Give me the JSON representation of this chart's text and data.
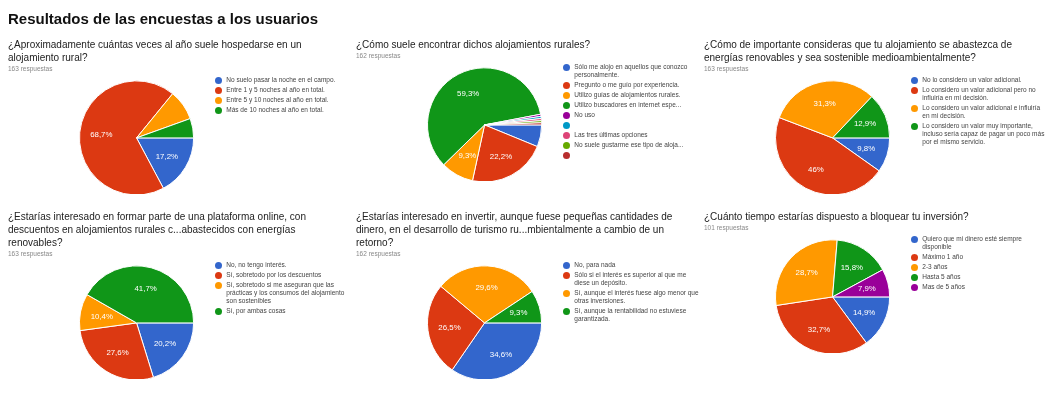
{
  "chart_data": [
    {
      "type": "pie",
      "title": "¿Aproximadamente cuántas veces al año suele hospedarse en un alojamiento rural?",
      "subtitle": "163 respuestas",
      "annotations": [
        "Resultados de las encuestas a los usuarios"
      ],
      "legend": "right",
      "categories": [
        "No suelo pasar la noche en el campo.",
        "Entre 1 y 5 noches al año en total.",
        "Entre 5 y 10 noches al año en total.",
        "Más de 10 noches al año en total."
      ],
      "values": [
        17.2,
        68.7,
        8.6,
        5.5
      ],
      "value_labels": [
        "17,2%",
        "68,7%",
        null,
        null
      ],
      "colors": [
        "#3366cc",
        "#dc3912",
        "#ff9900",
        "#109618"
      ]
    },
    {
      "type": "pie",
      "title": "¿Cómo suele encontrar dichos alojamientos rurales?",
      "subtitle": "162 respuestas",
      "legend": "right",
      "categories": [
        "Sólo me alojo en aquellos que conozco personalmente.",
        "Pregunto o me guío por experiencia.",
        "Utilizo guías de alojamientos rurales.",
        "Utilizo buscadores en internet espe...",
        "No uso",
        null,
        "Las tres últimas opciones",
        "No suele gustarme ese tipo de aloja...",
        null
      ],
      "values": [
        6.2,
        22.2,
        9.3,
        59.3,
        0.6,
        0.6,
        0.6,
        0.6,
        0.6
      ],
      "value_labels": [
        null,
        "22,2%",
        "9,3%",
        "59,3%",
        null,
        null,
        null,
        null,
        null
      ],
      "colors": [
        "#3366cc",
        "#dc3912",
        "#ff9900",
        "#109618",
        "#990099",
        "#0099c6",
        "#dd4477",
        "#66aa00",
        "#b82e2e"
      ]
    },
    {
      "type": "pie",
      "title": "¿Cómo de importante consideras que tu alojamiento se abastezca de energías renovables y sea sostenible medioambientalmente?",
      "subtitle": "163 respuestas",
      "legend": "right",
      "categories": [
        "No lo considero un valor adicional.",
        "Lo considero un valor adicional pero no influiría en mi decisión.",
        "Lo considero un valor adicional e influiría en mi decisión.",
        "Lo considero un valor muy importante, incluso sería capaz de pagar un poco más por el mismo servicio."
      ],
      "values": [
        9.8,
        46,
        31.3,
        12.9
      ],
      "value_labels": [
        "9,8%",
        "46%",
        "31,3%",
        "12,9%"
      ],
      "colors": [
        "#3366cc",
        "#dc3912",
        "#ff9900",
        "#109618"
      ]
    },
    {
      "type": "pie",
      "title": "¿Estarías interesado en formar parte de una plataforma online, con descuentos en alojamientos rurales c...abastecidos con energías renovables?",
      "subtitle": "163 respuestas",
      "legend": "right",
      "categories": [
        "No, no tengo interés.",
        "Sí, sobretodo por los descuentos",
        "Sí, sobretodo si me aseguran que las prácticas y los consumos del alojamiento son sostenibles",
        "Sí, por ambas cosas"
      ],
      "values": [
        20.2,
        27.6,
        10.4,
        41.7
      ],
      "value_labels": [
        "20,2%",
        "27,6%",
        "10,4%",
        "41,7%"
      ],
      "colors": [
        "#3366cc",
        "#dc3912",
        "#ff9900",
        "#109618"
      ]
    },
    {
      "type": "pie",
      "title": "¿Estarías interesado en invertir, aunque fuese pequeñas cantidades de dinero, en el desarrollo de turismo ru...mbientalmente a cambio de un retorno?",
      "subtitle": "162 respuestas",
      "legend": "right",
      "categories": [
        "No, para nada",
        "Sólo si el interés es superior al que me diese un depósito.",
        "Sí, aunque el interés fuese algo menor que otras inversiones.",
        "Sí, aunque la rentabilidad no estuviese garantizada."
      ],
      "values": [
        34.6,
        26.5,
        29.6,
        9.3
      ],
      "value_labels": [
        "34,6%",
        "26,5%",
        "29,6%",
        "9,3%"
      ],
      "colors": [
        "#3366cc",
        "#dc3912",
        "#ff9900",
        "#109618"
      ]
    },
    {
      "type": "pie",
      "title": "¿Cuánto tiempo estarías dispuesto a bloquear tu inversión?",
      "subtitle": "101 respuestas",
      "legend": "right",
      "categories": [
        "Quiero que mi dinero esté siempre disponible",
        "Máximo 1 año",
        "2-3 años",
        "Hasta 5 años",
        "Mas de 5 años"
      ],
      "values": [
        14.9,
        32.7,
        28.7,
        15.8,
        7.9
      ],
      "value_labels": [
        "14,9%",
        "32,7%",
        "28,7%",
        "15,8%",
        "7,9%"
      ],
      "colors": [
        "#3366cc",
        "#dc3912",
        "#ff9900",
        "#109618",
        "#990099"
      ]
    }
  ]
}
